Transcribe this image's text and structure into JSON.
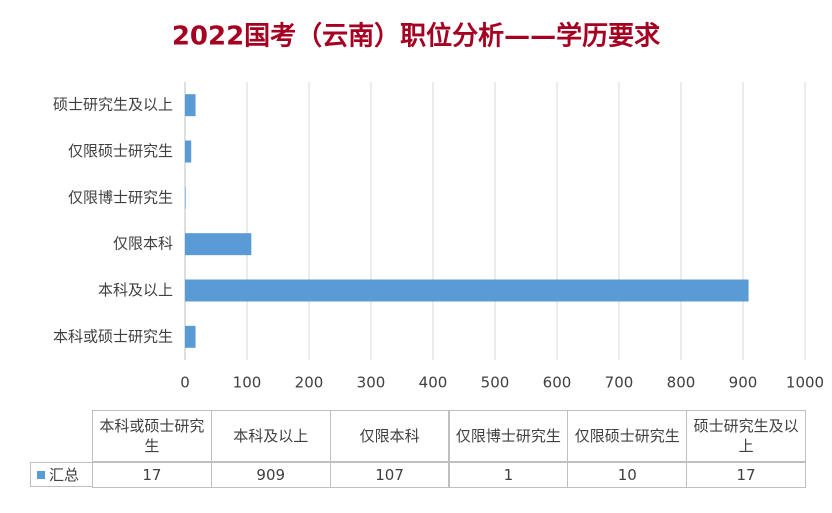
{
  "chart_data": {
    "type": "bar",
    "horizontal": true,
    "title": "2022国考（云南）职位分析——学历要求",
    "categories": [
      "本科或硕士研究生",
      "本科及以上",
      "仅限本科",
      "仅限博士研究生",
      "仅限硕士研究生",
      "硕士研究生及以上"
    ],
    "series": [
      {
        "name": "汇总",
        "color": "#5b9bd5",
        "values": [
          17,
          909,
          107,
          1,
          10,
          17
        ]
      }
    ],
    "xlim": [
      0,
      1000
    ],
    "xticks": [
      0,
      100,
      200,
      300,
      400,
      500,
      600,
      700,
      800,
      900,
      1000
    ],
    "grid": true,
    "data_table": true
  }
}
